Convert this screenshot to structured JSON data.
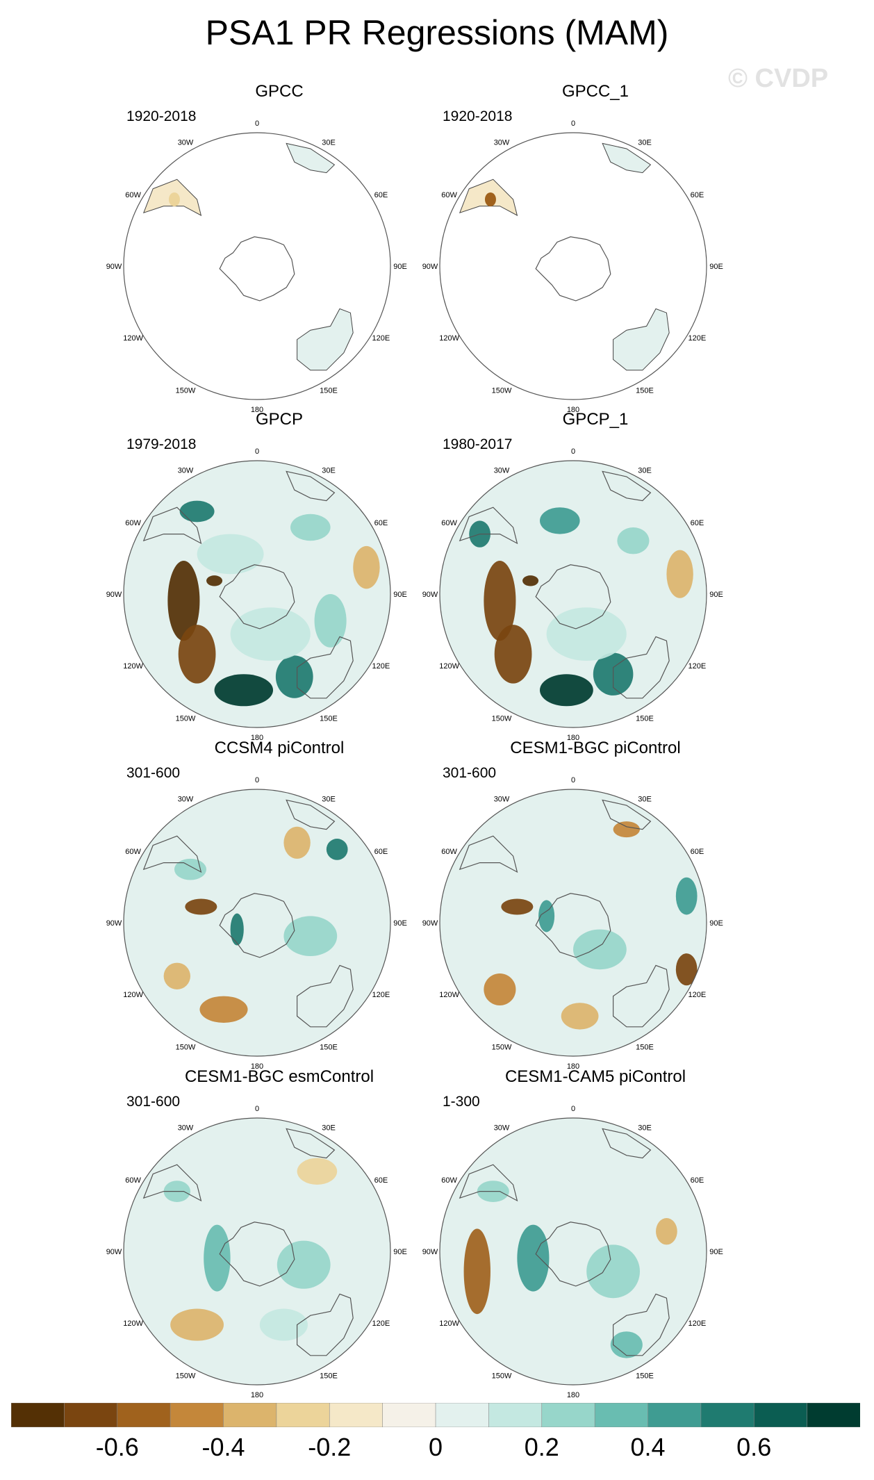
{
  "title": "PSA1 PR Regressions (MAM)",
  "watermark": "© CVDP",
  "lon_labels": [
    "0",
    "30E",
    "60E",
    "90E",
    "120E",
    "150E",
    "180",
    "150W",
    "120W",
    "90W",
    "60W",
    "30W"
  ],
  "panels": [
    {
      "name": "GPCC",
      "years": "1920-2018",
      "coverage": "land"
    },
    {
      "name": "GPCC_1",
      "years": "1920-2018",
      "coverage": "land"
    },
    {
      "name": "GPCP",
      "years": "1979-2018",
      "coverage": "full"
    },
    {
      "name": "GPCP_1",
      "years": "1980-2017",
      "coverage": "full"
    },
    {
      "name": "CCSM4 piControl",
      "years": "301-600",
      "coverage": "full"
    },
    {
      "name": "CESM1-BGC piControl",
      "years": "301-600",
      "coverage": "full"
    },
    {
      "name": "CESM1-BGC esmControl",
      "years": "301-600",
      "coverage": "full"
    },
    {
      "name": "CESM1-CAM5 piControl",
      "years": "1-300",
      "coverage": "full"
    }
  ],
  "colorbar": {
    "colors": [
      "#543005",
      "#7a4510",
      "#a0621d",
      "#c4873a",
      "#dcb46c",
      "#ecd49a",
      "#f5e8c8",
      "#f5f1e8",
      "#e3f1ee",
      "#c4e8e1",
      "#97d6ca",
      "#69bdb1",
      "#3f9c92",
      "#1f7b70",
      "#0b5d52",
      "#003c30"
    ],
    "labels": [
      {
        "text": "-0.6",
        "value": -0.6
      },
      {
        "text": "-0.4",
        "value": -0.4
      },
      {
        "text": "-0.2",
        "value": -0.2
      },
      {
        "text": "0",
        "value": 0
      },
      {
        "text": "0.2",
        "value": 0.2
      },
      {
        "text": "0.4",
        "value": 0.4
      },
      {
        "text": "0.6",
        "value": 0.6
      }
    ],
    "min": -0.8,
    "max": 0.8
  }
}
